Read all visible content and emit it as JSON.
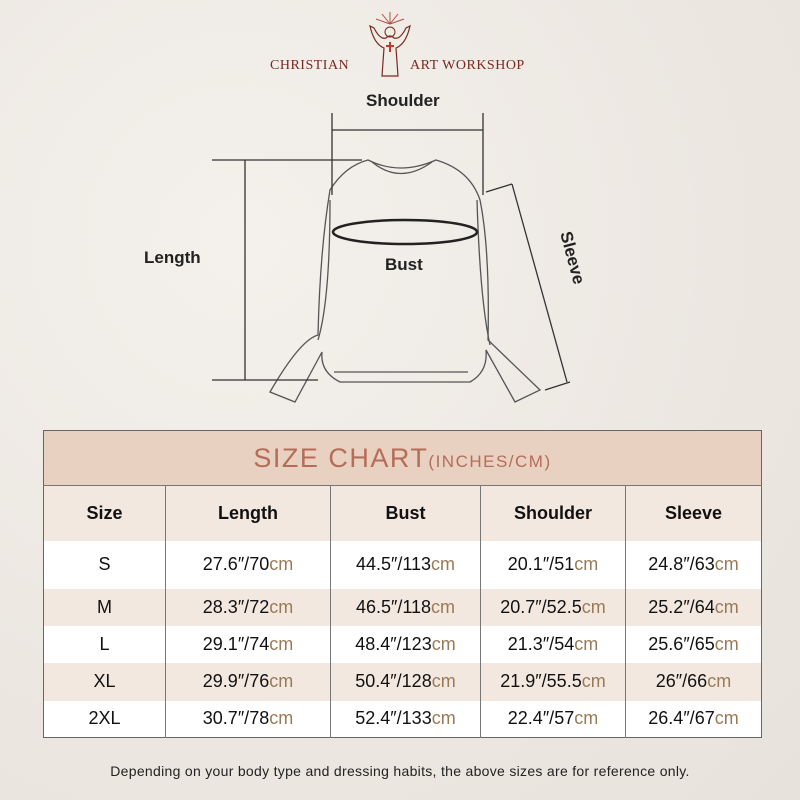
{
  "brand": {
    "left": "CHRISTIAN",
    "right": "ART WORKSHOP"
  },
  "diagram": {
    "shoulder": "Shoulder",
    "length": "Length",
    "bust": "Bust",
    "sleeve": "Sleeve"
  },
  "chart_data": {
    "type": "table",
    "title": "SIZE CHART",
    "title_units": "(INCHES/CM)",
    "columns": [
      "Size",
      "Length",
      "Bust",
      "Shoulder",
      "Sleeve"
    ],
    "rows": [
      {
        "size": "S",
        "length": [
          "27.6″/70",
          "cm"
        ],
        "bust": [
          "44.5″/113",
          "cm"
        ],
        "shoulder": [
          "20.1″/51",
          "cm"
        ],
        "sleeve": [
          "24.8″/63",
          "cm"
        ]
      },
      {
        "size": "M",
        "length": [
          "28.3″/72",
          "cm"
        ],
        "bust": [
          "46.5″/118",
          "cm"
        ],
        "shoulder": [
          "20.7″/52.5",
          "cm"
        ],
        "sleeve": [
          "25.2″/64",
          "cm"
        ]
      },
      {
        "size": "L",
        "length": [
          "29.1″/74",
          "cm"
        ],
        "bust": [
          "48.4″/123",
          "cm"
        ],
        "shoulder": [
          "21.3″/54",
          "cm"
        ],
        "sleeve": [
          "25.6″/65",
          "cm"
        ]
      },
      {
        "size": "XL",
        "length": [
          "29.9″/76",
          "cm"
        ],
        "bust": [
          "50.4″/128",
          "cm"
        ],
        "shoulder": [
          "21.9″/55.5",
          "cm"
        ],
        "sleeve": [
          "26″/66",
          "cm"
        ]
      },
      {
        "size": "2XL",
        "length": [
          "30.7″/78",
          "cm"
        ],
        "bust": [
          "52.4″/133",
          "cm"
        ],
        "shoulder": [
          "22.4″/57",
          "cm"
        ],
        "sleeve": [
          "26.4″/67",
          "cm"
        ]
      }
    ]
  },
  "note": "Depending on your body type and dressing habits, the above sizes are for reference only.",
  "colors": {
    "title_bg": "#e9d1c2",
    "title_text": "#b46d58",
    "cm": "#9a7a56",
    "brand": "#7a2a22"
  }
}
